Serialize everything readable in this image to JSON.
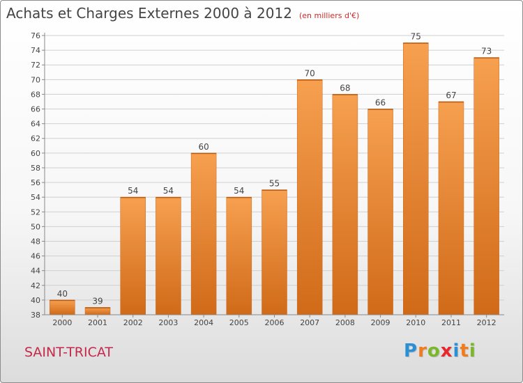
{
  "header": {
    "title": "Achats et Charges Externes 2000 à 2012",
    "subtitle": "(en milliers d'€)"
  },
  "footer": {
    "commune": "SAINT-TRICAT",
    "logo": {
      "text": "Proxiti",
      "letters": [
        {
          "ch": "P",
          "color": "#2b8fd6"
        },
        {
          "ch": "r",
          "color": "#f07c1e"
        },
        {
          "ch": "o",
          "color": "#7ab829"
        },
        {
          "ch": "x",
          "color": "#e8262d"
        },
        {
          "ch": "i",
          "color": "#2b8fd6"
        },
        {
          "ch": "t",
          "color": "#f07c1e"
        },
        {
          "ch": "i",
          "color": "#7ab829"
        }
      ]
    }
  },
  "chart_data": {
    "type": "bar",
    "categories": [
      "2000",
      "2001",
      "2002",
      "2003",
      "2004",
      "2005",
      "2006",
      "2007",
      "2008",
      "2009",
      "2010",
      "2011",
      "2012"
    ],
    "values": [
      40,
      39,
      54,
      54,
      60,
      54,
      55,
      70,
      68,
      66,
      75,
      67,
      73
    ],
    "ylim": [
      38,
      76
    ],
    "ytick_step": 2,
    "grid": true,
    "bar_color": "#f0913a",
    "bar_color_dark": "#d06a18"
  }
}
